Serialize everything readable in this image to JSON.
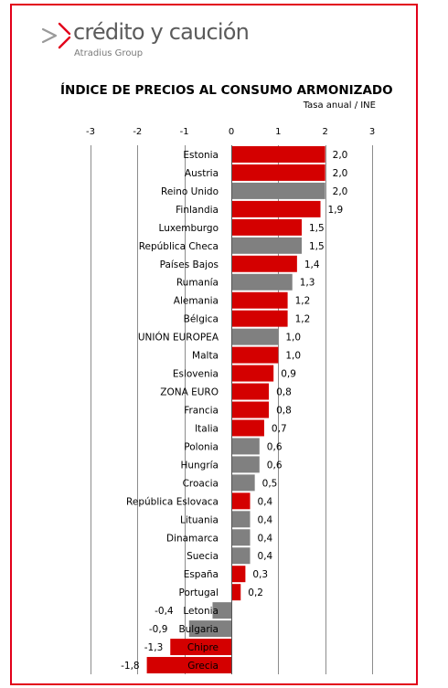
{
  "brand": {
    "name": "crédito y caución",
    "group": "Atradius Group",
    "colors": {
      "accent": "#e2001a",
      "text": "#5b5b5b"
    }
  },
  "chart_data": {
    "type": "bar",
    "orientation": "horizontal",
    "title": "ÍNDICE DE PRECIOS AL CONSUMO ARMONIZADO",
    "subtitle": "Tasa anual  /  INE",
    "xlim": [
      -3,
      3
    ],
    "x_ticks": [
      "-3",
      "-2",
      "-1",
      "0",
      "1",
      "2",
      "3"
    ],
    "x_tick_values": [
      -3,
      -2,
      -1,
      0,
      1,
      2,
      3
    ],
    "grid": true,
    "colors": {
      "highlight": "#d40000",
      "other": "#808080"
    },
    "categories": [
      "Estonia",
      "Austria",
      "Reino Unido",
      "Finlandia",
      "Luxemburgo",
      "República Checa",
      "Países Bajos",
      "Rumanía",
      "Alemania",
      "Bélgica",
      "UNIÓN EUROPEA",
      "Malta",
      "Eslovenia",
      "ZONA EURO",
      "Francia",
      "Italia",
      "Polonia",
      "Hungría",
      "Croacia",
      "República Eslovaca",
      "Lituania",
      "Dinamarca",
      "Suecia",
      "España",
      "Portugal",
      "Letonia",
      "Bulgaria",
      "Chipre",
      "Grecia"
    ],
    "values": [
      2.0,
      2.0,
      2.0,
      1.9,
      1.5,
      1.5,
      1.4,
      1.3,
      1.2,
      1.2,
      1.0,
      1.0,
      0.9,
      0.8,
      0.8,
      0.7,
      0.6,
      0.6,
      0.5,
      0.4,
      0.4,
      0.4,
      0.4,
      0.3,
      0.2,
      -0.4,
      -0.9,
      -1.3,
      -1.8
    ],
    "value_labels": [
      "2,0",
      "2,0",
      "2,0",
      "1,9",
      "1,5",
      "1,5",
      "1,4",
      "1,3",
      "1,2",
      "1,2",
      "1,0",
      "1,0",
      "0,9",
      "0,8",
      "0,8",
      "0,7",
      "0,6",
      "0,6",
      "0,5",
      "0,4",
      "0,4",
      "0,4",
      "0,4",
      "0,3",
      "0,2",
      "-0,4",
      "-0,9",
      "-1,3",
      "-1,8"
    ],
    "highlighted": [
      true,
      true,
      false,
      true,
      true,
      false,
      true,
      false,
      true,
      true,
      false,
      true,
      true,
      true,
      true,
      true,
      false,
      false,
      false,
      true,
      false,
      false,
      false,
      true,
      true,
      false,
      false,
      true,
      true
    ]
  }
}
